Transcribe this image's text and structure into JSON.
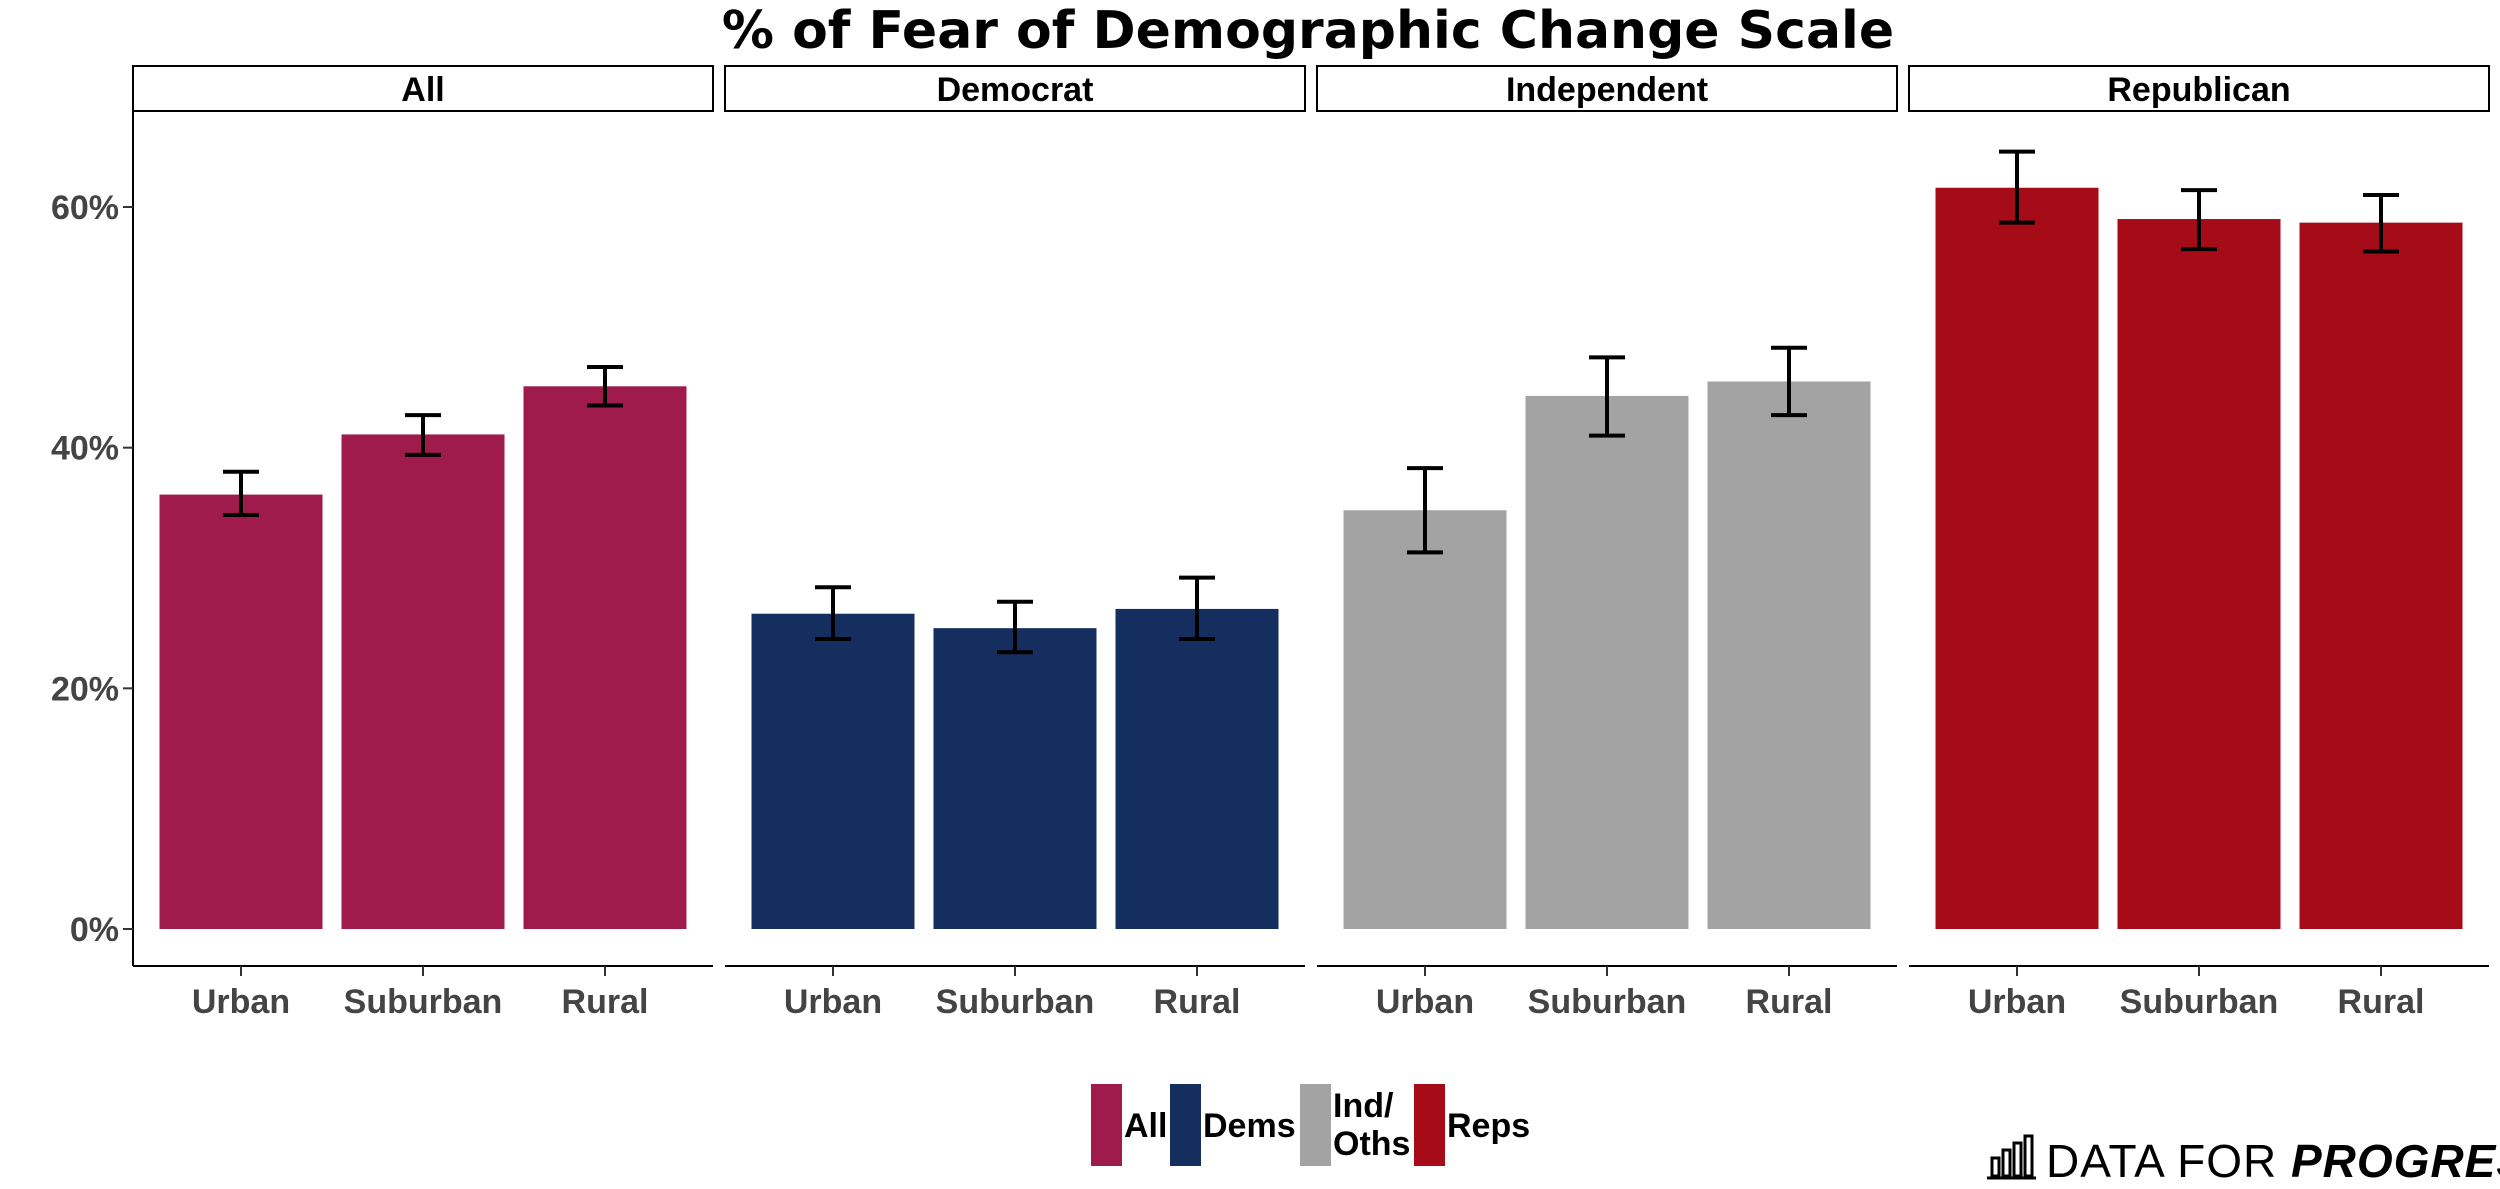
{
  "chart_data": {
    "type": "bar",
    "title": "% of Fear of Demographic Change Scale",
    "xlabel": "",
    "ylabel": "",
    "ylim": [
      0,
      0.7
    ],
    "yticks": [
      0,
      0.2,
      0.4,
      0.6
    ],
    "ytick_labels": [
      "0%",
      "20%",
      "40%",
      "60%"
    ],
    "grid": false,
    "categories": [
      "Urban",
      "Suburban",
      "Rural"
    ],
    "panels": [
      {
        "name": "All",
        "legend_key": "All",
        "color": "#9E1B4B",
        "values": [
          0.361,
          0.411,
          0.451
        ],
        "error_low": [
          0.344,
          0.394,
          0.435
        ],
        "error_high": [
          0.38,
          0.427,
          0.467
        ]
      },
      {
        "name": "Democrat",
        "legend_key": "Dems",
        "color": "#132E5F",
        "values": [
          0.262,
          0.25,
          0.266
        ],
        "error_low": [
          0.241,
          0.23,
          0.241
        ],
        "error_high": [
          0.284,
          0.272,
          0.292
        ]
      },
      {
        "name": "Independent",
        "legend_key": "Ind/ Oths",
        "color": "#A3A3A3",
        "values": [
          0.348,
          0.443,
          0.455
        ],
        "error_low": [
          0.313,
          0.41,
          0.427
        ],
        "error_high": [
          0.383,
          0.475,
          0.483
        ]
      },
      {
        "name": "Republican",
        "legend_key": "Reps",
        "color": "#A50C17",
        "values": [
          0.616,
          0.59,
          0.587
        ],
        "error_low": [
          0.587,
          0.565,
          0.563
        ],
        "error_high": [
          0.646,
          0.614,
          0.61
        ]
      }
    ],
    "legend": {
      "position": "bottom",
      "items": [
        {
          "label": "All",
          "color": "#9E1B4B"
        },
        {
          "label": "Dems",
          "color": "#132E5F"
        },
        {
          "label": "Ind/ Oths",
          "color": "#A3A3A3"
        },
        {
          "label": "Reps",
          "color": "#A50C17"
        }
      ]
    }
  },
  "brand": {
    "prefix": "DATA FOR ",
    "emphasis": "PROGRESS"
  }
}
